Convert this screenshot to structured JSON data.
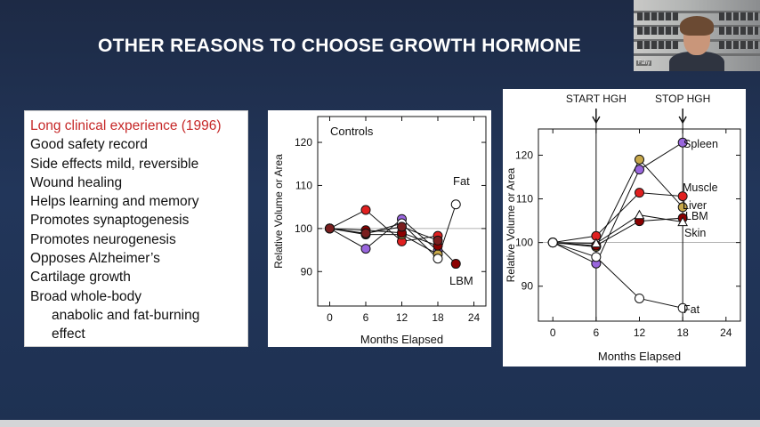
{
  "slide": {
    "title": "OTHER REASONS TO CHOOSE GROWTH HORMONE",
    "bullets": [
      "Long clinical experience (1996)",
      "Good safety record",
      "Side effects mild, reversible",
      "Wound healing",
      "Helps learning and memory",
      "Promotes synaptogenesis",
      "Promotes neurogenesis",
      "Opposes Alzheimer’s",
      "Cartilage growth",
      "Broad whole-body",
      "anabolic and fat-burning",
      "effect"
    ],
    "highlight_color": "#c62828"
  },
  "webcam": {
    "name": "Fahy"
  },
  "chart_data": [
    {
      "type": "line",
      "title": "Controls",
      "xlabel": "Months Elapsed",
      "ylabel": "Relative Volume or Area",
      "xticks": [
        0,
        6,
        12,
        18,
        24
      ],
      "yticks": [
        90,
        100,
        110,
        120
      ],
      "xlim": [
        -2,
        26
      ],
      "ylim": [
        82,
        126
      ],
      "reference_y": 100,
      "labels": [
        "Fat",
        "LBM"
      ],
      "series": [
        {
          "color": "#e02020",
          "points": [
            [
              0,
              100
            ],
            [
              6,
              104.3
            ],
            [
              12,
              97
            ],
            [
              18,
              98.3
            ]
          ]
        },
        {
          "color": "#9966dd",
          "points": [
            [
              0,
              100
            ],
            [
              6,
              95.3
            ],
            [
              12,
              102.2
            ],
            [
              18,
              94.8
            ]
          ]
        },
        {
          "color": "#c8a84a",
          "points": [
            [
              0,
              100
            ],
            [
              6,
              98.6
            ],
            [
              12,
              98.6
            ],
            [
              18,
              94
            ]
          ]
        },
        {
          "color": "#ffffff",
          "points": [
            [
              0,
              100
            ],
            [
              6,
              98.8
            ],
            [
              12,
              101.2
            ],
            [
              18,
              93
            ],
            [
              21,
              105.6
            ]
          ]
        },
        {
          "color": "#8b0000",
          "points": [
            [
              0,
              100
            ],
            [
              6,
              99.6
            ],
            [
              12,
              99
            ],
            [
              18,
              96
            ],
            [
              21,
              91.8
            ]
          ]
        },
        {
          "color": "#7a1e1e",
          "points": [
            [
              0,
              100
            ],
            [
              6,
              98.9
            ],
            [
              12,
              100.4
            ],
            [
              18,
              97.2
            ]
          ]
        }
      ]
    },
    {
      "type": "line",
      "xlabel": "Months Elapsed",
      "ylabel": "Relative Volume or Area",
      "xticks": [
        0,
        6,
        12,
        18,
        24
      ],
      "yticks": [
        90,
        100,
        110,
        120
      ],
      "xlim": [
        -2,
        26
      ],
      "ylim": [
        82,
        126
      ],
      "reference_y": 100,
      "annotations": [
        "START HGH",
        "STOP HGH"
      ],
      "markers_x": [
        6,
        18
      ],
      "series": [
        {
          "name": "Spleen",
          "color": "#9966dd",
          "points": [
            [
              0,
              100
            ],
            [
              6,
              95.2
            ],
            [
              12,
              116.7
            ],
            [
              18,
              122.9
            ]
          ]
        },
        {
          "name": "Muscle",
          "color": "#e02020",
          "points": [
            [
              0,
              100
            ],
            [
              6,
              101.5
            ],
            [
              12,
              111.4
            ],
            [
              18,
              110.6
            ]
          ]
        },
        {
          "name": "Liver",
          "color": "#c8a84a",
          "points": [
            [
              0,
              100
            ],
            [
              6,
              99
            ],
            [
              12,
              119
            ],
            [
              18,
              108.1
            ]
          ]
        },
        {
          "name": "LBM",
          "color": "#8b0000",
          "points": [
            [
              0,
              100
            ],
            [
              6,
              99.3
            ],
            [
              12,
              104.9
            ],
            [
              18,
              105.6
            ]
          ]
        },
        {
          "name": "Skin",
          "color": "#ffffff",
          "marker": "triangle",
          "points": [
            [
              0,
              100
            ],
            [
              6,
              99.8
            ],
            [
              12,
              106.3
            ],
            [
              18,
              104.7
            ]
          ]
        },
        {
          "name": "Fat",
          "color": "#ffffff",
          "points": [
            [
              0,
              100
            ],
            [
              6,
              96.7
            ],
            [
              12,
              87.2
            ],
            [
              18,
              85
            ]
          ]
        }
      ]
    }
  ]
}
